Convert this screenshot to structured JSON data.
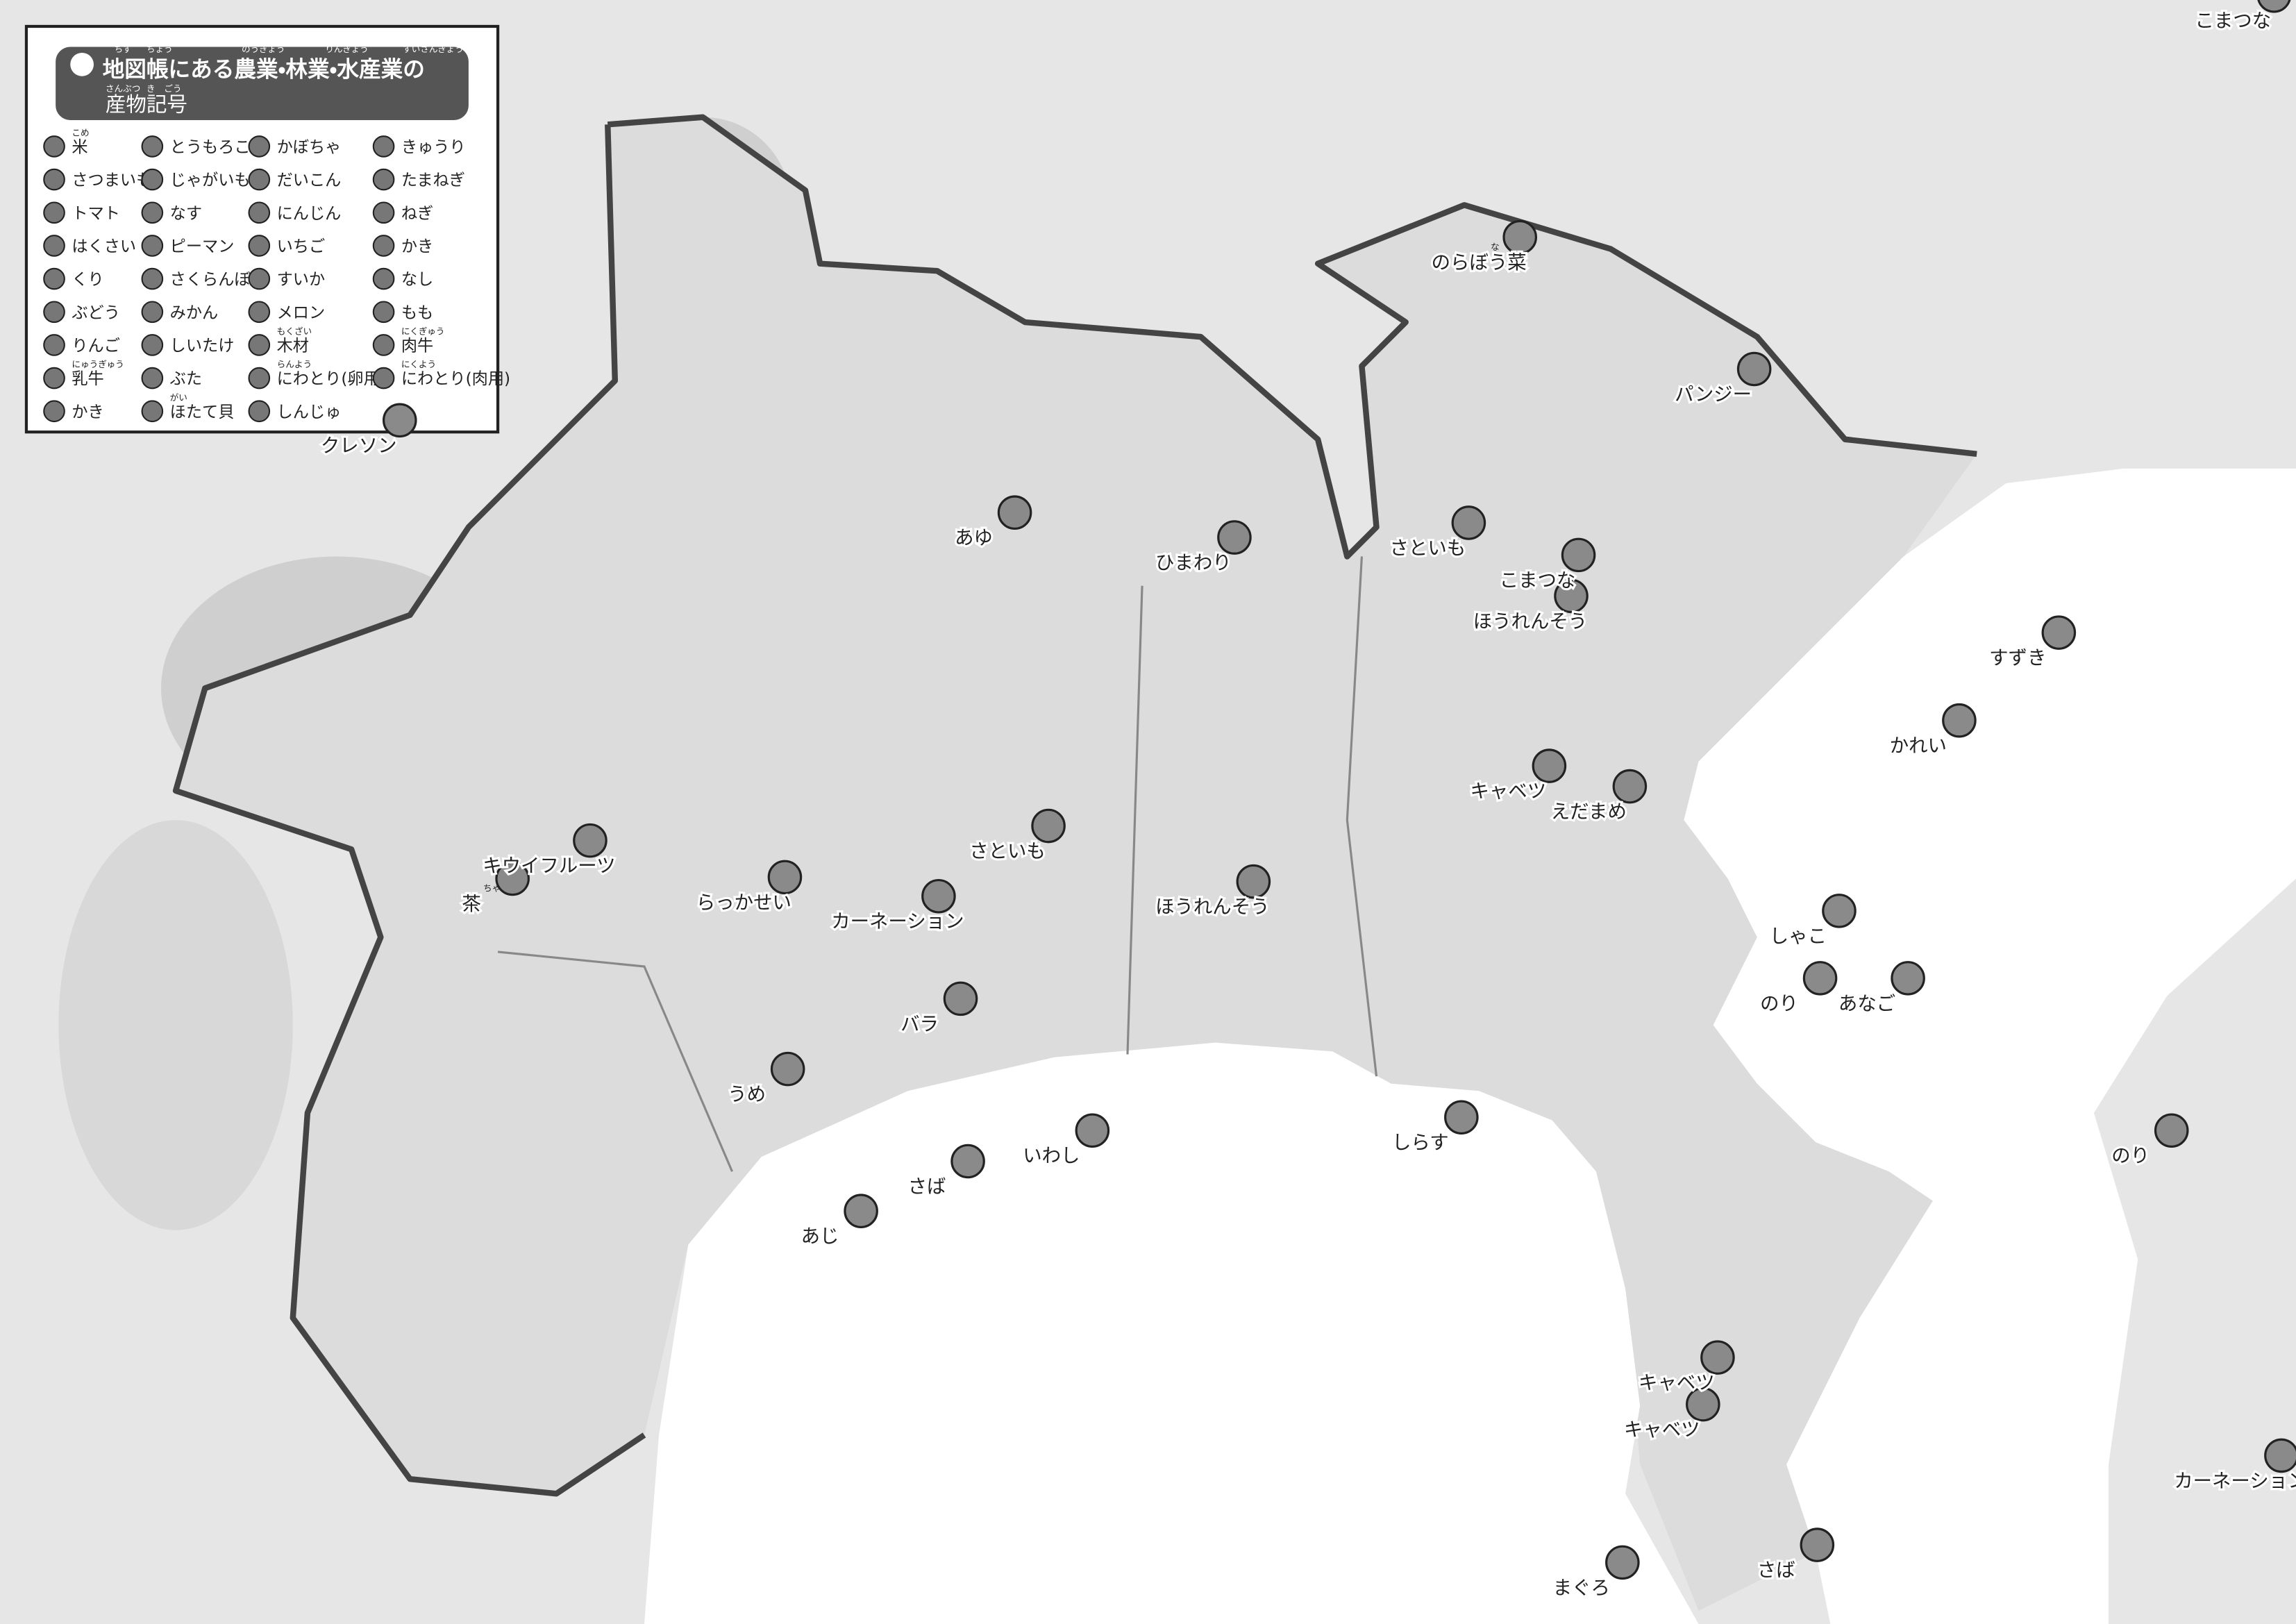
{
  "legend": {
    "title": "地図帳にある農業・林業・水産業の",
    "title_ruby": [
      "ちず",
      "ちょう",
      "のうぎょう",
      "りんぎょう",
      "すいさんぎょう"
    ],
    "subtitle": "産物記号",
    "subtitle_ruby": [
      "さんぶつ",
      "き",
      "ごう"
    ],
    "items": [
      {
        "label": "米",
        "ruby": "こめ"
      },
      {
        "label": "とうもろこし"
      },
      {
        "label": "かぼちゃ"
      },
      {
        "label": "きゅうり"
      },
      {
        "label": "さつまいも"
      },
      {
        "label": "じゃがいも"
      },
      {
        "label": "だいこん"
      },
      {
        "label": "たまねぎ"
      },
      {
        "label": "トマト"
      },
      {
        "label": "なす"
      },
      {
        "label": "にんじん"
      },
      {
        "label": "ねぎ"
      },
      {
        "label": "はくさい"
      },
      {
        "label": "ピーマン"
      },
      {
        "label": "いちご"
      },
      {
        "label": "かき"
      },
      {
        "label": "くり"
      },
      {
        "label": "さくらんぼ"
      },
      {
        "label": "すいか"
      },
      {
        "label": "なし"
      },
      {
        "label": "ぶどう"
      },
      {
        "label": "みかん"
      },
      {
        "label": "メロン"
      },
      {
        "label": "もも"
      },
      {
        "label": "りんご"
      },
      {
        "label": "しいたけ"
      },
      {
        "label": "木材",
        "ruby": "もくざい"
      },
      {
        "label": "肉牛",
        "ruby": "にくぎゅう"
      },
      {
        "label": "乳牛",
        "ruby": "にゅうぎゅう"
      },
      {
        "label": "ぶた"
      },
      {
        "label": "にわとり(卵用)",
        "ruby": "らんよう"
      },
      {
        "label": "にわとり(肉用)",
        "ruby": "にくよう"
      },
      {
        "label": "かき"
      },
      {
        "label": "ほたて貝",
        "ruby": "がい"
      },
      {
        "label": "しんじゅ"
      }
    ]
  },
  "map": {
    "labels": [
      {
        "text": "こまつな"
      },
      {
        "text": "クレソン"
      },
      {
        "text": "のらぼう菜",
        "ruby": "な"
      },
      {
        "text": "パンジー"
      },
      {
        "text": "さといも"
      },
      {
        "text": "こまつな"
      },
      {
        "text": "ほうれんそう"
      },
      {
        "text": "すずき"
      },
      {
        "text": "かれい"
      },
      {
        "text": "キャベツ"
      },
      {
        "text": "えだまめ"
      },
      {
        "text": "あゆ"
      },
      {
        "text": "ひまわり"
      },
      {
        "text": "キウイフルーツ"
      },
      {
        "text": "茶",
        "ruby": "ちゃ"
      },
      {
        "text": "らっかせい"
      },
      {
        "text": "カーネーション"
      },
      {
        "text": "さといも"
      },
      {
        "text": "ほうれんそう"
      },
      {
        "text": "しゃこ"
      },
      {
        "text": "のり"
      },
      {
        "text": "あなご"
      },
      {
        "text": "バラ"
      },
      {
        "text": "うめ"
      },
      {
        "text": "しらす"
      },
      {
        "text": "いわし"
      },
      {
        "text": "さば"
      },
      {
        "text": "あじ"
      },
      {
        "text": "のり"
      },
      {
        "text": "キャベツ"
      },
      {
        "text": "キャベツ"
      },
      {
        "text": "まぐろ"
      },
      {
        "text": "さば"
      },
      {
        "text": "カーネーション"
      }
    ]
  }
}
